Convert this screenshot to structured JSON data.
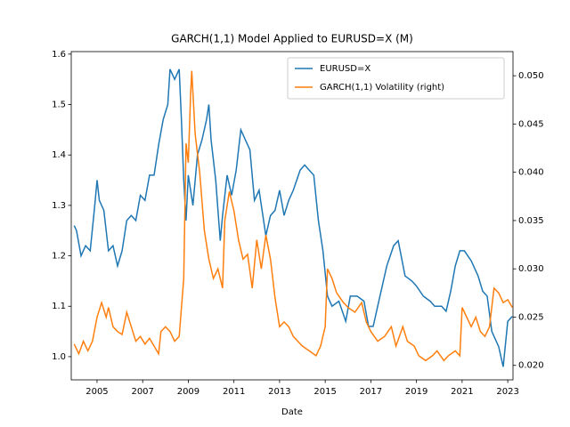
{
  "chart_data": {
    "type": "line",
    "title": "GARCH(1,1) Model Applied to EURUSD=X (M)",
    "xlabel": "Date",
    "xlim": [
      2003.87,
      2023.23
    ],
    "xticks": [
      2005,
      2007,
      2009,
      2011,
      2013,
      2015,
      2017,
      2019,
      2021,
      2023
    ],
    "ylim": [
      0.954,
      1.605
    ],
    "yticks": [
      {
        "value": 1.0,
        "label": "1.0"
      },
      1.1,
      1.2,
      1.3,
      1.4,
      1.5,
      1.6
    ],
    "y2lim": [
      0.0185,
      0.0525
    ],
    "y2ticks": [
      {
        "value": 0.02,
        "label": "0.020"
      },
      0.025,
      {
        "value": 0.03,
        "label": "0.030"
      },
      0.035,
      {
        "value": 0.04,
        "label": "0.040"
      },
      0.045,
      {
        "value": 0.05,
        "label": "0.050"
      }
    ],
    "legend": "upper right",
    "series": [
      {
        "name": "EURUSD=X",
        "color": "#1f77b4",
        "x": [
          2004.0,
          2004.1,
          2004.3,
          2004.5,
          2004.7,
          2004.9,
          2005.0,
          2005.1,
          2005.3,
          2005.5,
          2005.7,
          2005.9,
          2006.1,
          2006.3,
          2006.5,
          2006.7,
          2006.9,
          2007.1,
          2007.3,
          2007.5,
          2007.7,
          2007.9,
          2008.1,
          2008.2,
          2008.4,
          2008.6,
          2008.7,
          2008.8,
          2008.9,
          2009.0,
          2009.2,
          2009.4,
          2009.6,
          2009.8,
          2009.9,
          2010.0,
          2010.2,
          2010.4,
          2010.5,
          2010.7,
          2010.9,
          2011.1,
          2011.3,
          2011.5,
          2011.7,
          2011.9,
          2012.1,
          2012.4,
          2012.6,
          2012.8,
          2013.0,
          2013.2,
          2013.4,
          2013.6,
          2013.9,
          2014.1,
          2014.3,
          2014.5,
          2014.7,
          2014.9,
          2015.1,
          2015.3,
          2015.6,
          2015.9,
          2016.1,
          2016.4,
          2016.7,
          2016.9,
          2017.1,
          2017.4,
          2017.7,
          2018.0,
          2018.2,
          2018.5,
          2018.8,
          2019.0,
          2019.3,
          2019.6,
          2019.8,
          2020.1,
          2020.3,
          2020.5,
          2020.7,
          2020.9,
          2021.1,
          2021.4,
          2021.7,
          2021.9,
          2022.1,
          2022.3,
          2022.6,
          2022.8,
          2023.0,
          2023.2
        ],
        "values": [
          1.26,
          1.25,
          1.2,
          1.22,
          1.21,
          1.3,
          1.35,
          1.31,
          1.29,
          1.21,
          1.22,
          1.18,
          1.21,
          1.27,
          1.28,
          1.27,
          1.32,
          1.31,
          1.36,
          1.36,
          1.42,
          1.47,
          1.5,
          1.57,
          1.55,
          1.57,
          1.47,
          1.35,
          1.27,
          1.36,
          1.3,
          1.4,
          1.43,
          1.47,
          1.5,
          1.43,
          1.35,
          1.23,
          1.28,
          1.36,
          1.32,
          1.37,
          1.45,
          1.43,
          1.41,
          1.31,
          1.33,
          1.24,
          1.28,
          1.29,
          1.33,
          1.28,
          1.31,
          1.33,
          1.37,
          1.38,
          1.37,
          1.36,
          1.27,
          1.21,
          1.12,
          1.1,
          1.11,
          1.07,
          1.12,
          1.12,
          1.11,
          1.06,
          1.06,
          1.12,
          1.18,
          1.22,
          1.23,
          1.16,
          1.15,
          1.14,
          1.12,
          1.11,
          1.1,
          1.1,
          1.09,
          1.13,
          1.18,
          1.21,
          1.21,
          1.19,
          1.16,
          1.13,
          1.12,
          1.05,
          1.02,
          0.98,
          1.07,
          1.08
        ]
      },
      {
        "name": "GARCH(1,1) Volatility (right)",
        "color": "#ff7f0e",
        "axis": "y2",
        "x": [
          2004.0,
          2004.2,
          2004.4,
          2004.6,
          2004.8,
          2005.0,
          2005.2,
          2005.4,
          2005.5,
          2005.7,
          2005.9,
          2006.1,
          2006.3,
          2006.5,
          2006.7,
          2006.9,
          2007.1,
          2007.3,
          2007.5,
          2007.7,
          2007.8,
          2008.0,
          2008.2,
          2008.4,
          2008.6,
          2008.8,
          2008.9,
          2009.0,
          2009.1,
          2009.15,
          2009.3,
          2009.5,
          2009.7,
          2009.9,
          2010.1,
          2010.3,
          2010.5,
          2010.6,
          2010.8,
          2011.0,
          2011.2,
          2011.4,
          2011.6,
          2011.8,
          2012.0,
          2012.2,
          2012.4,
          2012.6,
          2012.8,
          2013.0,
          2013.2,
          2013.4,
          2013.6,
          2013.8,
          2014.0,
          2014.3,
          2014.6,
          2014.8,
          2015.0,
          2015.1,
          2015.3,
          2015.5,
          2015.8,
          2016.0,
          2016.3,
          2016.6,
          2016.8,
          2017.0,
          2017.3,
          2017.6,
          2017.9,
          2018.1,
          2018.4,
          2018.6,
          2018.9,
          2019.1,
          2019.4,
          2019.7,
          2019.9,
          2020.2,
          2020.4,
          2020.7,
          2020.9,
          2021.0,
          2021.2,
          2021.4,
          2021.6,
          2021.8,
          2022.0,
          2022.2,
          2022.4,
          2022.6,
          2022.8,
          2023.0,
          2023.2
        ],
        "values": [
          0.0222,
          0.0212,
          0.0225,
          0.0215,
          0.0225,
          0.025,
          0.0265,
          0.025,
          0.026,
          0.024,
          0.0235,
          0.0232,
          0.0255,
          0.024,
          0.0225,
          0.023,
          0.0222,
          0.0228,
          0.022,
          0.0212,
          0.0235,
          0.024,
          0.0235,
          0.0225,
          0.023,
          0.029,
          0.043,
          0.041,
          0.048,
          0.0505,
          0.044,
          0.04,
          0.034,
          0.031,
          0.029,
          0.03,
          0.028,
          0.035,
          0.038,
          0.036,
          0.033,
          0.031,
          0.0315,
          0.028,
          0.033,
          0.03,
          0.0335,
          0.031,
          0.027,
          0.024,
          0.0245,
          0.024,
          0.023,
          0.0225,
          0.022,
          0.0215,
          0.021,
          0.022,
          0.024,
          0.03,
          0.029,
          0.0275,
          0.0265,
          0.026,
          0.0255,
          0.0265,
          0.0245,
          0.0235,
          0.0225,
          0.023,
          0.024,
          0.022,
          0.024,
          0.0225,
          0.022,
          0.021,
          0.0205,
          0.021,
          0.0215,
          0.0205,
          0.021,
          0.0215,
          0.021,
          0.026,
          0.025,
          0.024,
          0.025,
          0.0235,
          0.023,
          0.024,
          0.028,
          0.0275,
          0.0265,
          0.0268,
          0.026
        ]
      }
    ]
  }
}
